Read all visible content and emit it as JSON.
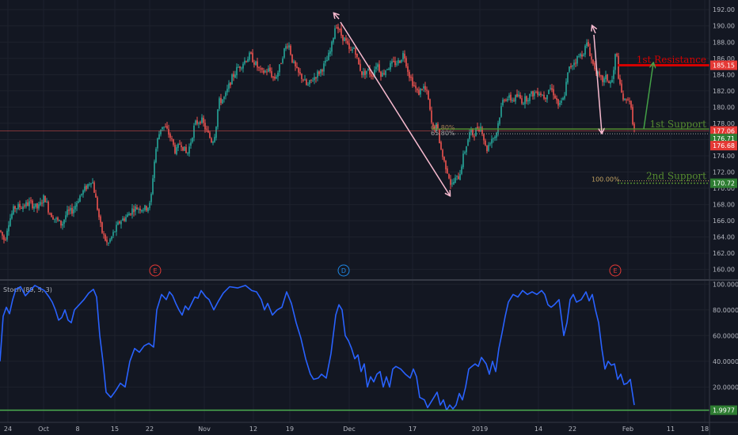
{
  "chart_data": {
    "type": "candlestick",
    "x_tick_labels": [
      "24",
      "Oct",
      "8",
      "15",
      "22",
      "Nov",
      "12",
      "19",
      "Dec",
      "17",
      "2019",
      "14",
      "22",
      "Feb",
      "11",
      "18"
    ],
    "price_axis": {
      "ticks": [
        160,
        162,
        164,
        166,
        168,
        170,
        172,
        174,
        176,
        178,
        180,
        182,
        184,
        186,
        188,
        190,
        192
      ],
      "tick_labels": [
        "160.00",
        "162.00",
        "164.00",
        "166.00",
        "168.00",
        "170.00",
        "172.00",
        "174.00",
        "176.00",
        "178.00",
        "180.00",
        "182.00",
        "184.00",
        "186.00",
        "188.00",
        "190.00",
        "192.00"
      ],
      "range": [
        158.8,
        192.8
      ]
    },
    "price_path": [
      [
        0,
        164.8
      ],
      [
        6,
        163.5
      ],
      [
        10,
        165.6
      ],
      [
        18,
        167.6
      ],
      [
        28,
        167.8
      ],
      [
        38,
        168.2
      ],
      [
        48,
        167.5
      ],
      [
        56,
        169.0
      ],
      [
        62,
        167.1
      ],
      [
        70,
        166.2
      ],
      [
        78,
        165.5
      ],
      [
        84,
        166.9
      ],
      [
        92,
        167.3
      ],
      [
        100,
        168.9
      ],
      [
        108,
        170.0
      ],
      [
        116,
        171.2
      ],
      [
        120,
        169.2
      ],
      [
        124,
        167.0
      ],
      [
        128,
        164.8
      ],
      [
        136,
        163.0
      ],
      [
        144,
        164.6
      ],
      [
        152,
        166.0
      ],
      [
        160,
        166.5
      ],
      [
        168,
        167.5
      ],
      [
        176,
        167.6
      ],
      [
        184,
        167.5
      ],
      [
        190,
        168.0
      ],
      [
        194,
        172.6
      ],
      [
        198,
        175.6
      ],
      [
        204,
        177.8
      ],
      [
        210,
        177.3
      ],
      [
        216,
        176.1
      ],
      [
        222,
        174.4
      ],
      [
        228,
        175.7
      ],
      [
        236,
        174.1
      ],
      [
        240,
        175.4
      ],
      [
        246,
        177.9
      ],
      [
        254,
        178.5
      ],
      [
        262,
        176.8
      ],
      [
        268,
        175.7
      ],
      [
        272,
        177.0
      ],
      [
        276,
        180.6
      ],
      [
        284,
        181.2
      ],
      [
        292,
        183.4
      ],
      [
        300,
        184.8
      ],
      [
        308,
        185.6
      ],
      [
        316,
        186.4
      ],
      [
        322,
        185.4
      ],
      [
        330,
        184.2
      ],
      [
        340,
        184.6
      ],
      [
        346,
        183.4
      ],
      [
        352,
        184.5
      ],
      [
        358,
        186.8
      ],
      [
        364,
        188.0
      ],
      [
        370,
        185.4
      ],
      [
        376,
        184.2
      ],
      [
        382,
        183.6
      ],
      [
        388,
        182.5
      ],
      [
        396,
        183.6
      ],
      [
        404,
        184.4
      ],
      [
        412,
        185.5
      ],
      [
        418,
        187.1
      ],
      [
        424,
        190.4
      ],
      [
        430,
        189.0
      ],
      [
        436,
        188.2
      ],
      [
        442,
        186.7
      ],
      [
        448,
        187.4
      ],
      [
        452,
        185.4
      ],
      [
        458,
        184.0
      ],
      [
        464,
        184.6
      ],
      [
        470,
        183.9
      ],
      [
        476,
        185.5
      ],
      [
        482,
        183.9
      ],
      [
        488,
        184.8
      ],
      [
        496,
        185.3
      ],
      [
        504,
        185.6
      ],
      [
        510,
        186.7
      ],
      [
        516,
        184.2
      ],
      [
        522,
        182.8
      ],
      [
        528,
        181.6
      ],
      [
        534,
        182.6
      ],
      [
        540,
        181.5
      ],
      [
        546,
        177.3
      ],
      [
        552,
        177.7
      ],
      [
        556,
        175.2
      ],
      [
        560,
        173.5
      ],
      [
        566,
        171.9
      ],
      [
        570,
        170.2
      ],
      [
        574,
        171.0
      ],
      [
        580,
        171.5
      ],
      [
        584,
        173.5
      ],
      [
        588,
        175.0
      ],
      [
        594,
        177.1
      ],
      [
        598,
        176.5
      ],
      [
        602,
        177.4
      ],
      [
        608,
        177.6
      ],
      [
        614,
        174.6
      ],
      [
        620,
        176.1
      ],
      [
        626,
        176.5
      ],
      [
        632,
        179.5
      ],
      [
        636,
        181.2
      ],
      [
        642,
        181.1
      ],
      [
        648,
        180.9
      ],
      [
        654,
        181.4
      ],
      [
        660,
        180.7
      ],
      [
        666,
        181.2
      ],
      [
        672,
        181.6
      ],
      [
        680,
        182.0
      ],
      [
        688,
        181.2
      ],
      [
        694,
        182.5
      ],
      [
        700,
        181.6
      ],
      [
        706,
        180.0
      ],
      [
        712,
        181.1
      ],
      [
        718,
        184.6
      ],
      [
        724,
        185.5
      ],
      [
        730,
        186.1
      ],
      [
        736,
        186.7
      ],
      [
        742,
        187.9
      ],
      [
        748,
        185.4
      ],
      [
        752,
        184.8
      ],
      [
        756,
        183.6
      ],
      [
        762,
        183.2
      ],
      [
        766,
        183.7
      ],
      [
        770,
        182.8
      ],
      [
        774,
        183.5
      ],
      [
        778,
        187.2
      ],
      [
        782,
        182.8
      ],
      [
        786,
        181.3
      ],
      [
        790,
        180.4
      ],
      [
        794,
        181.5
      ],
      [
        798,
        178.9
      ],
      [
        801,
        177.06
      ]
    ],
    "stochastic_panel": {
      "label": "Stoch (89, 5, 3)",
      "ticks": [
        20,
        40,
        60,
        80,
        100
      ],
      "tick_labels": [
        "20.0000",
        "40.0000",
        "60.0000",
        "80.0000",
        "100.0000"
      ],
      "range": [
        -5,
        102
      ],
      "current_value_label": "1.9977",
      "current_value": 1.9977,
      "k_path": [
        [
          0,
          40
        ],
        [
          4,
          75
        ],
        [
          8,
          82
        ],
        [
          12,
          77
        ],
        [
          16,
          88
        ],
        [
          20,
          96
        ],
        [
          26,
          98
        ],
        [
          32,
          91
        ],
        [
          38,
          95
        ],
        [
          44,
          99
        ],
        [
          50,
          97
        ],
        [
          56,
          95
        ],
        [
          62,
          90
        ],
        [
          66,
          86
        ],
        [
          70,
          80
        ],
        [
          74,
          72
        ],
        [
          78,
          74
        ],
        [
          82,
          80
        ],
        [
          86,
          72
        ],
        [
          90,
          70
        ],
        [
          94,
          80
        ],
        [
          100,
          84
        ],
        [
          106,
          88
        ],
        [
          112,
          93
        ],
        [
          118,
          96
        ],
        [
          122,
          90
        ],
        [
          126,
          60
        ],
        [
          130,
          40
        ],
        [
          134,
          16
        ],
        [
          140,
          12
        ],
        [
          146,
          17
        ],
        [
          152,
          23
        ],
        [
          158,
          20
        ],
        [
          164,
          40
        ],
        [
          170,
          50
        ],
        [
          176,
          47
        ],
        [
          182,
          52
        ],
        [
          188,
          54
        ],
        [
          194,
          51
        ],
        [
          198,
          80
        ],
        [
          204,
          92
        ],
        [
          210,
          88
        ],
        [
          214,
          94
        ],
        [
          218,
          91
        ],
        [
          222,
          85
        ],
        [
          226,
          80
        ],
        [
          230,
          76
        ],
        [
          234,
          83
        ],
        [
          238,
          80
        ],
        [
          242,
          85
        ],
        [
          246,
          90
        ],
        [
          250,
          89
        ],
        [
          254,
          95
        ],
        [
          260,
          90
        ],
        [
          264,
          88
        ],
        [
          270,
          80
        ],
        [
          276,
          87
        ],
        [
          282,
          93
        ],
        [
          290,
          98
        ],
        [
          300,
          97
        ],
        [
          310,
          99
        ],
        [
          318,
          95
        ],
        [
          324,
          94
        ],
        [
          330,
          88
        ],
        [
          334,
          80
        ],
        [
          338,
          85
        ],
        [
          344,
          76
        ],
        [
          350,
          80
        ],
        [
          356,
          82
        ],
        [
          362,
          94
        ],
        [
          368,
          85
        ],
        [
          374,
          70
        ],
        [
          380,
          58
        ],
        [
          386,
          42
        ],
        [
          392,
          30
        ],
        [
          396,
          26
        ],
        [
          402,
          27
        ],
        [
          406,
          30
        ],
        [
          412,
          27
        ],
        [
          418,
          46
        ],
        [
          424,
          76
        ],
        [
          428,
          84
        ],
        [
          432,
          80
        ],
        [
          436,
          60
        ],
        [
          440,
          56
        ],
        [
          444,
          50
        ],
        [
          448,
          42
        ],
        [
          452,
          45
        ],
        [
          456,
          32
        ],
        [
          460,
          38
        ],
        [
          464,
          20
        ],
        [
          468,
          28
        ],
        [
          472,
          24
        ],
        [
          476,
          30
        ],
        [
          480,
          32
        ],
        [
          484,
          20
        ],
        [
          488,
          28
        ],
        [
          492,
          20
        ],
        [
          496,
          34
        ],
        [
          500,
          36
        ],
        [
          506,
          34
        ],
        [
          512,
          30
        ],
        [
          518,
          27
        ],
        [
          522,
          34
        ],
        [
          526,
          28
        ],
        [
          530,
          12
        ],
        [
          536,
          10
        ],
        [
          540,
          4
        ],
        [
          544,
          8
        ],
        [
          548,
          12
        ],
        [
          552,
          16
        ],
        [
          556,
          6
        ],
        [
          560,
          10
        ],
        [
          564,
          2
        ],
        [
          568,
          6
        ],
        [
          572,
          3
        ],
        [
          576,
          6
        ],
        [
          580,
          15
        ],
        [
          584,
          10
        ],
        [
          588,
          20
        ],
        [
          592,
          34
        ],
        [
          596,
          36
        ],
        [
          600,
          38
        ],
        [
          604,
          36
        ],
        [
          608,
          43
        ],
        [
          614,
          38
        ],
        [
          618,
          30
        ],
        [
          622,
          40
        ],
        [
          626,
          32
        ],
        [
          630,
          50
        ],
        [
          634,
          62
        ],
        [
          638,
          75
        ],
        [
          642,
          86
        ],
        [
          648,
          92
        ],
        [
          654,
          90
        ],
        [
          660,
          95
        ],
        [
          666,
          92
        ],
        [
          672,
          94
        ],
        [
          678,
          92
        ],
        [
          684,
          95
        ],
        [
          688,
          92
        ],
        [
          692,
          84
        ],
        [
          696,
          82
        ],
        [
          700,
          84
        ],
        [
          706,
          88
        ],
        [
          712,
          60
        ],
        [
          716,
          70
        ],
        [
          720,
          88
        ],
        [
          724,
          92
        ],
        [
          728,
          86
        ],
        [
          734,
          88
        ],
        [
          740,
          94
        ],
        [
          744,
          87
        ],
        [
          748,
          92
        ],
        [
          752,
          80
        ],
        [
          756,
          70
        ],
        [
          760,
          50
        ],
        [
          764,
          34
        ],
        [
          768,
          40
        ],
        [
          772,
          37
        ],
        [
          776,
          38
        ],
        [
          780,
          26
        ],
        [
          784,
          30
        ],
        [
          788,
          22
        ],
        [
          792,
          23
        ],
        [
          796,
          26
        ],
        [
          801,
          6
        ]
      ]
    },
    "price_labels": [
      {
        "text": "185.15",
        "price": 185.15,
        "color": "#e53935"
      },
      {
        "text": "177.06",
        "price": 177.06,
        "color": "#e53935"
      },
      {
        "text": "176.71",
        "price": 176.71,
        "color": "#2e7d32"
      },
      {
        "text": "176.68",
        "price": 176.68,
        "color": "#e53935"
      },
      {
        "text": "170.72",
        "price": 170.72,
        "color": "#2e7d32"
      }
    ],
    "levels": [
      {
        "name": "1st Resistance",
        "price": 185.15,
        "color": "#d50000"
      },
      {
        "name": "1st Support",
        "price": 176.71,
        "color": "#558b2f"
      },
      {
        "name": "2nd Support",
        "price": 170.72,
        "color": "#558b2f"
      }
    ],
    "fib_labels": [
      "61.80%",
      "65.80%",
      "100.00%"
    ],
    "event_markers": [
      {
        "letter": "E",
        "color": "#e53935"
      },
      {
        "letter": "D",
        "color": "#1e88e5"
      },
      {
        "letter": "E",
        "color": "#e53935"
      }
    ],
    "annotations": [
      "1st Resistance",
      "1st Support",
      "2nd Support"
    ],
    "colors": {
      "up": "#26a69a",
      "down": "#ef5350",
      "stoch": "#2962ff",
      "background": "#131722",
      "grid": "#1e222d"
    }
  }
}
